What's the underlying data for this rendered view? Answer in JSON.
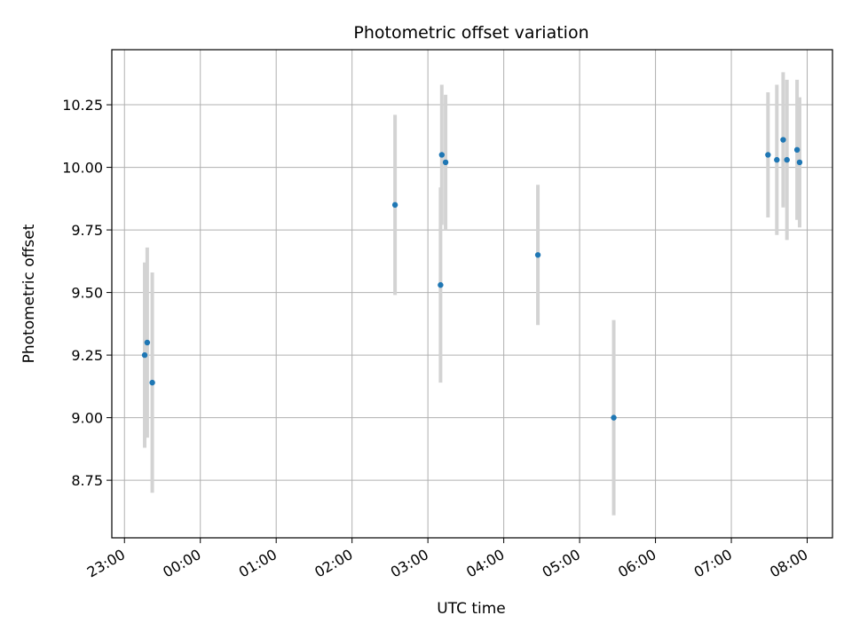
{
  "chart_data": {
    "type": "scatter",
    "title": "Photometric offset variation",
    "xlabel": "UTC time",
    "ylabel": "Photometric offset",
    "grid": true,
    "legend": "none",
    "xlim": [
      "22:50",
      "08:20"
    ],
    "ylim": [
      8.52,
      10.47
    ],
    "x_ticks": [
      "23:00",
      "00:00",
      "01:00",
      "02:00",
      "03:00",
      "04:00",
      "05:00",
      "06:00",
      "07:00",
      "08:00"
    ],
    "y_ticks": [
      "8.75",
      "9.00",
      "9.25",
      "9.50",
      "9.75",
      "10.00",
      "10.25"
    ],
    "marker_color": "#1f77b4",
    "errorbar_color": "#d3d3d3",
    "points": [
      {
        "time": "23:16",
        "y": 9.25,
        "yerr": 0.37
      },
      {
        "time": "23:18",
        "y": 9.3,
        "yerr": 0.38
      },
      {
        "time": "23:22",
        "y": 9.14,
        "yerr": 0.44
      },
      {
        "time": "02:34",
        "y": 9.85,
        "yerr": 0.36
      },
      {
        "time": "03:10",
        "y": 9.53,
        "yerr": 0.39
      },
      {
        "time": "03:11",
        "y": 10.05,
        "yerr": 0.28
      },
      {
        "time": "03:14",
        "y": 10.02,
        "yerr": 0.27
      },
      {
        "time": "04:27",
        "y": 9.65,
        "yerr": 0.28
      },
      {
        "time": "05:27",
        "y": 9.0,
        "yerr": 0.39
      },
      {
        "time": "07:29",
        "y": 10.05,
        "yerr": 0.25
      },
      {
        "time": "07:36",
        "y": 10.03,
        "yerr": 0.3
      },
      {
        "time": "07:41",
        "y": 10.11,
        "yerr": 0.27
      },
      {
        "time": "07:44",
        "y": 10.03,
        "yerr": 0.32
      },
      {
        "time": "07:52",
        "y": 10.07,
        "yerr": 0.28
      },
      {
        "time": "07:54",
        "y": 10.02,
        "yerr": 0.26
      }
    ]
  }
}
